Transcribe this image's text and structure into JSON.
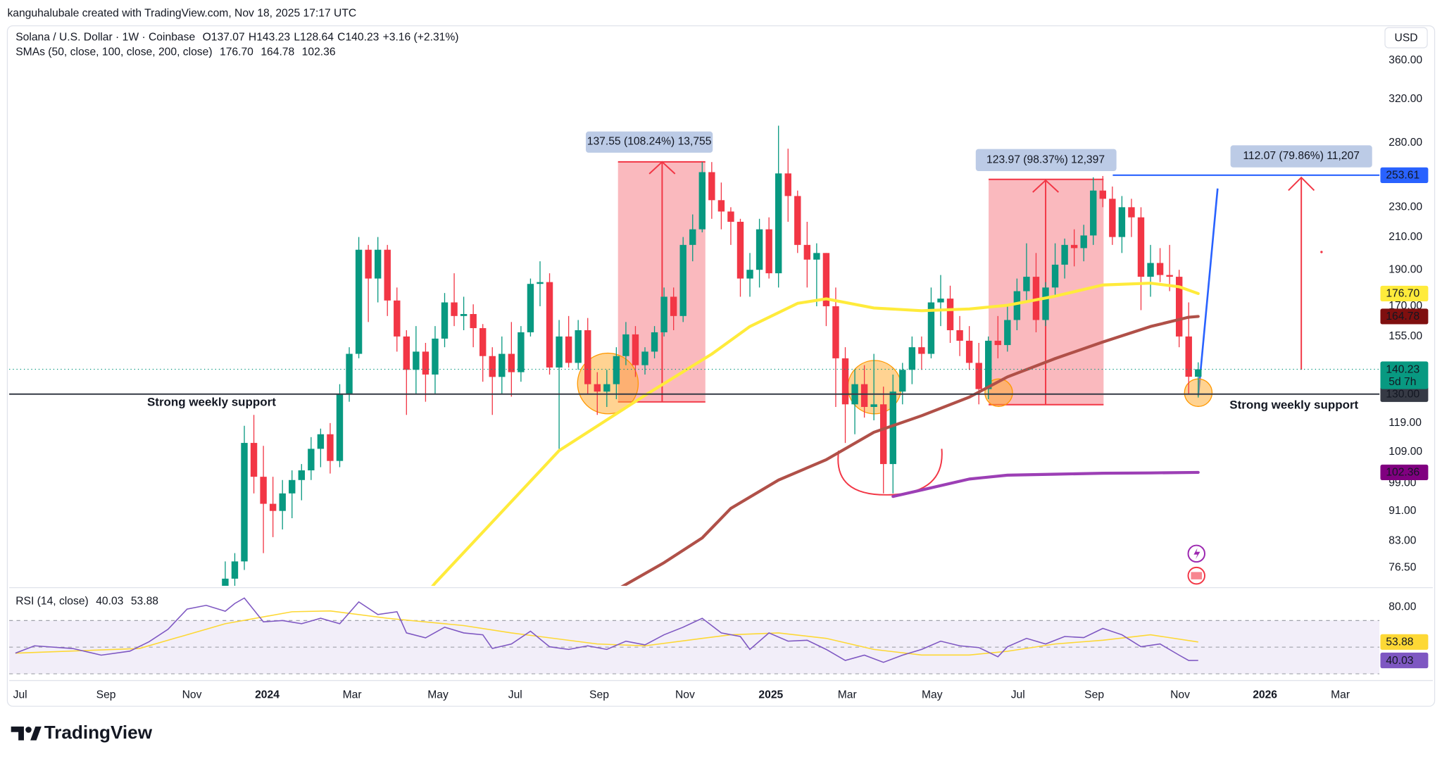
{
  "chart_data": {
    "type": "candlestick",
    "credit": "kanguhalubale created with TradingView.com, Nov 18, 2025 17:17 UTC",
    "title": "Solana / U.S. Dollar · 1W · Coinbase",
    "ohlc_labels": [
      "O",
      "H",
      "L",
      "C"
    ],
    "change": "+3.16 (+2.31%)",
    "sma_title": "SMAs (50, close, 100, close, 200, close)",
    "currency": "USD",
    "countdown": "5d 7h",
    "brand": "TradingView",
    "log_scale": true,
    "grid": false,
    "up_color": "#089981",
    "down_color": "#f23645",
    "candles": {
      "open": [
        59,
        74,
        78,
        112,
        101,
        93,
        91,
        96,
        100,
        103,
        110,
        115,
        106,
        130,
        147,
        202,
        185,
        202,
        173,
        155,
        140,
        148,
        138,
        154,
        172,
        165,
        166,
        159,
        146,
        137,
        147,
        139,
        157,
        182,
        183,
        141,
        155,
        143,
        158,
        134,
        131,
        134,
        146,
        156,
        142,
        148,
        157,
        175,
        165,
        205,
        215,
        256,
        235,
        227,
        220,
        185,
        190,
        215,
        188,
        255,
        238,
        205,
        196,
        200,
        170,
        145,
        126,
        134,
        125,
        126,
        105,
        131,
        140,
        150,
        147,
        172,
        174,
        158,
        153,
        143,
        132,
        153,
        151,
        163,
        178,
        186,
        163,
        180,
        193,
        205,
        203,
        211,
        242,
        236,
        210,
        230,
        223,
        186,
        194,
        187,
        186,
        155,
        137.07
      ],
      "high": [
        78,
        80,
        118,
        122,
        111,
        101,
        100,
        103,
        105,
        114,
        117,
        119,
        134,
        150,
        210,
        205,
        210,
        205,
        180,
        158,
        160,
        152,
        160,
        177,
        188,
        175,
        171,
        161,
        150,
        155,
        162,
        160,
        185,
        195,
        188,
        163,
        165,
        163,
        164,
        139,
        140,
        150,
        162,
        160,
        150,
        160,
        180,
        180,
        210,
        225,
        264,
        264,
        248,
        230,
        222,
        200,
        222,
        223,
        295,
        275,
        242,
        220,
        206,
        200,
        180,
        150,
        140,
        142,
        147,
        133,
        138,
        143,
        155,
        155,
        180,
        187,
        181,
        165,
        160,
        152,
        155,
        165,
        170,
        185,
        206,
        200,
        183,
        206,
        209,
        215,
        218,
        252,
        253,
        245,
        238,
        236,
        230,
        205,
        203,
        205,
        190,
        172,
        143.23
      ],
      "low": [
        57,
        69,
        76,
        96,
        80,
        84,
        86,
        89,
        94,
        100,
        104,
        102,
        104,
        127,
        145,
        162,
        172,
        165,
        148,
        122,
        130,
        127,
        130,
        150,
        160,
        158,
        150,
        135,
        122,
        130,
        129,
        135,
        155,
        170,
        138,
        110,
        141,
        140,
        130,
        122,
        125,
        128,
        142,
        137,
        138,
        145,
        155,
        158,
        162,
        195,
        213,
        222,
        215,
        205,
        175,
        175,
        180,
        185,
        180,
        220,
        200,
        180,
        170,
        160,
        125,
        112,
        115,
        121,
        120,
        96,
        96,
        126,
        134,
        140,
        145,
        160,
        152,
        146,
        140,
        126,
        128,
        145,
        148,
        158,
        172,
        157,
        160,
        175,
        185,
        192,
        195,
        205,
        230,
        205,
        200,
        210,
        168,
        175,
        183,
        178,
        150,
        130,
        128.64
      ],
      "close": [
        74,
        78,
        112,
        101,
        93,
        91,
        96,
        100,
        103,
        110,
        115,
        106,
        130,
        147,
        202,
        185,
        202,
        173,
        155,
        140,
        148,
        138,
        154,
        172,
        165,
        166,
        159,
        146,
        137,
        147,
        139,
        157,
        182,
        183,
        141,
        155,
        143,
        158,
        134,
        131,
        134,
        146,
        156,
        142,
        148,
        157,
        175,
        165,
        205,
        215,
        256,
        235,
        227,
        220,
        185,
        190,
        215,
        188,
        255,
        238,
        205,
        196,
        200,
        170,
        145,
        126,
        134,
        125,
        126,
        105,
        131,
        140,
        150,
        147,
        172,
        174,
        158,
        153,
        143,
        132,
        153,
        151,
        163,
        178,
        186,
        163,
        180,
        193,
        205,
        203,
        211,
        242,
        236,
        210,
        230,
        223,
        186,
        194,
        187,
        186,
        155,
        137.07,
        140.23
      ]
    },
    "overlays": [
      {
        "color": "#ffeb3b",
        "label_text_color": "#131722",
        "x": [
          20,
          22,
          35,
          44,
          51,
          55,
          60,
          63,
          68,
          73,
          78,
          82,
          87,
          92,
          97,
          100,
          102
        ],
        "values": [
          68,
          73,
          109.4,
          129.5,
          146.9,
          159.8,
          171.5,
          173.9,
          169.1,
          167.7,
          168.6,
          170.5,
          175.3,
          181.4,
          182.4,
          180.4,
          176.7
        ],
        "value_labels": [
          null,
          null,
          null,
          null,
          null,
          null,
          null,
          null,
          null,
          null,
          null,
          null,
          null,
          null,
          null,
          null,
          "176.70"
        ]
      },
      {
        "color": "#b05048",
        "label_color": "#7f0f0f",
        "label_text_color": "#ffffff",
        "x": [
          41,
          46,
          50,
          53,
          58,
          63,
          68,
          73,
          78,
          82,
          87,
          92,
          97,
          101,
          102
        ],
        "values": [
          71.5,
          77.7,
          83.8,
          91.7,
          100,
          106.4,
          115.7,
          121.7,
          128.8,
          137,
          144.9,
          152.4,
          159.8,
          164.4,
          164.78
        ],
        "value_labels": [
          null,
          null,
          null,
          null,
          null,
          null,
          null,
          null,
          null,
          null,
          null,
          null,
          null,
          null,
          "164.78"
        ]
      },
      {
        "color": "#9c3fb5",
        "label_color": "#800080",
        "label_text_color": "#ffffff",
        "x": [
          70,
          73,
          78,
          82,
          87,
          92,
          97,
          102
        ],
        "values": [
          95.1,
          97,
          100.3,
          101.5,
          101.8,
          102.1,
          102.2,
          102.36
        ],
        "value_labels": [
          null,
          null,
          null,
          null,
          null,
          null,
          null,
          "102.36"
        ]
      }
    ],
    "levels": [
      {
        "value": 130,
        "label": "130.00",
        "color": "#363a45"
      },
      {
        "value": 253.61,
        "label": "253.61",
        "color": "#2962ff"
      }
    ],
    "annotations": [
      {
        "text": "Strong weekly support"
      },
      {
        "text": "Strong weekly support"
      },
      {
        "text": "137.55 (108.24%) 13,755"
      },
      {
        "text": "123.97 (98.37%) 12,397"
      },
      {
        "text": "112.07 (79.86%) 11,207"
      }
    ],
    "xlim": [
      -22.65,
      121
    ],
    "xticks": [
      {
        "value": -21.5,
        "label": "Jul"
      },
      {
        "value": -12.5,
        "label": "Sep"
      },
      {
        "value": -3.5,
        "label": "Nov"
      },
      {
        "value": 4.4,
        "label": "2024"
      },
      {
        "value": 13.3,
        "label": "Mar"
      },
      {
        "value": 22.3,
        "label": "May"
      },
      {
        "value": 30.4,
        "label": "Jul"
      },
      {
        "value": 39.2,
        "label": "Sep"
      },
      {
        "value": 48.2,
        "label": "Nov"
      },
      {
        "value": 57.2,
        "label": "2025"
      },
      {
        "value": 65.2,
        "label": "Mar"
      },
      {
        "value": 74.1,
        "label": "May"
      },
      {
        "value": 83.1,
        "label": "Jul"
      },
      {
        "value": 91.1,
        "label": "Sep"
      },
      {
        "value": 100.1,
        "label": "Nov"
      },
      {
        "value": 109,
        "label": "2026"
      },
      {
        "value": 116.9,
        "label": "Mar"
      }
    ],
    "ylim": [
      72.4,
      398
    ],
    "yticks": [
      {
        "value": 360,
        "label": "360.00"
      },
      {
        "value": 320,
        "label": "320.00"
      },
      {
        "value": 280,
        "label": "280.00"
      },
      {
        "value": 230,
        "label": "230.00"
      },
      {
        "value": 210,
        "label": "210.00"
      },
      {
        "value": 190,
        "label": "190.00"
      },
      {
        "value": 170,
        "label": "170.00"
      },
      {
        "value": 155,
        "label": "155.00"
      },
      {
        "value": 119,
        "label": "119.00"
      },
      {
        "value": 109,
        "label": "109.00"
      },
      {
        "value": 99,
        "label": "99.00"
      },
      {
        "value": 91,
        "label": "91.00"
      },
      {
        "value": 83,
        "label": "83.00"
      },
      {
        "value": 76.5,
        "label": "76.50"
      }
    ],
    "rsi": {
      "title": "RSI (14, close)",
      "ylim": [
        27,
        94
      ],
      "yticks": [
        {
          "value": 80,
          "label": "80.00"
        }
      ],
      "bands": [
        70,
        50,
        30
      ],
      "band_color": "#7e57c2",
      "series": [
        {
          "color": "#7e57c2",
          "x": [
            -22,
            -20,
            -16,
            -13,
            -10,
            -8,
            -6,
            -4,
            -2,
            0,
            1,
            2,
            4,
            6,
            8,
            10,
            12,
            14,
            16,
            18,
            19,
            21,
            23,
            25,
            27,
            28,
            30,
            32,
            34,
            36,
            38,
            40,
            42,
            44,
            46,
            48,
            50,
            52,
            54,
            55,
            57,
            59,
            61,
            63,
            65,
            67,
            69,
            71,
            73,
            75,
            77,
            79,
            81,
            82,
            84,
            86,
            88,
            90,
            92,
            94,
            96,
            98,
            100,
            101,
            102
          ],
          "values": [
            45.5,
            51,
            49,
            44,
            47,
            54,
            63.4,
            78.6,
            81.4,
            77,
            82.8,
            86.9,
            69,
            70,
            67.6,
            71.7,
            67.6,
            84,
            74.5,
            76.6,
            60.7,
            57,
            65,
            60.7,
            59.3,
            49,
            52.4,
            62,
            50.3,
            48.3,
            51,
            48.3,
            54.5,
            51.7,
            59.3,
            65,
            71.7,
            60.7,
            58,
            48.3,
            60.7,
            54.5,
            55.2,
            48.3,
            40,
            44,
            38.6,
            44,
            48.3,
            54.5,
            51,
            49.7,
            42.8,
            50.3,
            56.6,
            52.4,
            58,
            57.2,
            64.1,
            59.3,
            50.3,
            52.4,
            44,
            40,
            40.03
          ],
          "value_labels": [
            null,
            null,
            null,
            null,
            null,
            null,
            null,
            null,
            null,
            null,
            null,
            null,
            null,
            null,
            null,
            null,
            null,
            null,
            null,
            null,
            null,
            null,
            null,
            null,
            null,
            null,
            null,
            null,
            null,
            null,
            null,
            null,
            null,
            null,
            null,
            null,
            null,
            null,
            null,
            null,
            null,
            null,
            null,
            null,
            null,
            null,
            null,
            null,
            null,
            null,
            null,
            null,
            null,
            null,
            null,
            null,
            null,
            null,
            null,
            null,
            null,
            null,
            null,
            null,
            "40.03"
          ]
        },
        {
          "color": "#fdd835",
          "label_text_color": "#131722",
          "x": [
            -22,
            -9,
            0,
            7,
            11,
            17,
            25,
            30,
            39,
            44,
            50,
            53,
            58,
            63,
            68,
            73,
            78,
            82,
            87,
            92,
            97,
            102
          ],
          "values": [
            45.5,
            49,
            67.6,
            76.6,
            77.2,
            71.7,
            66.2,
            60.7,
            52.4,
            51,
            56.6,
            59.3,
            60.7,
            56.6,
            48.3,
            44.1,
            44.1,
            46.9,
            52.4,
            55.2,
            59.3,
            53.88
          ],
          "value_labels": [
            null,
            null,
            null,
            null,
            null,
            null,
            null,
            null,
            null,
            null,
            null,
            null,
            null,
            null,
            null,
            null,
            null,
            null,
            null,
            null,
            null,
            "53.88"
          ]
        }
      ]
    }
  }
}
